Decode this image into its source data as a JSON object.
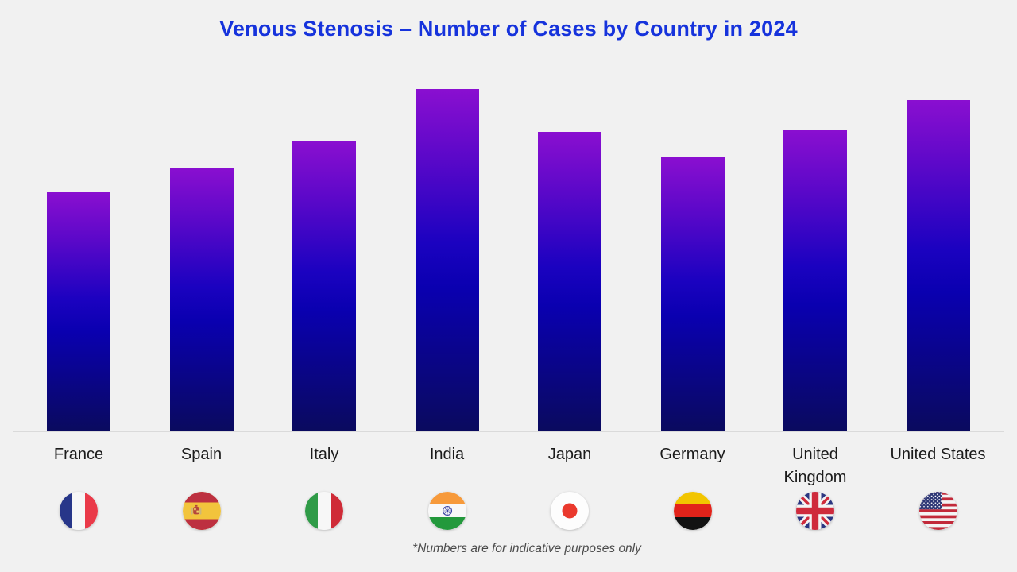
{
  "title": {
    "text": "Venous Stenosis – Number of Cases by Country in 2024"
  },
  "footnote": {
    "text": "*Numbers are for indicative purposes only"
  },
  "chart_data": {
    "type": "bar",
    "title": "Venous Stenosis – Number of Cases by Country in 2024",
    "categories": [
      "France",
      "Spain",
      "Italy",
      "India",
      "Japan",
      "Germany",
      "United Kingdom",
      "United States"
    ],
    "values": [
      301,
      332,
      365,
      431,
      377,
      345,
      379,
      417
    ],
    "value_scale_note": "no y-axis shown; values are relative bar heights (px), numbers indicative only",
    "xlabel": "",
    "ylabel": "",
    "grid": false,
    "legend": null,
    "note": "*Numbers are for indicative purposes only",
    "flag_icons": [
      "france-flag-icon",
      "spain-flag-icon",
      "italy-flag-icon",
      "india-flag-icon",
      "japan-flag-icon",
      "germany-flag-icon",
      "united-kingdom-flag-icon",
      "united-states-flag-icon"
    ],
    "colors": {
      "background": "#f1f1f1",
      "title": "#1633dc",
      "bar_gradient_top": "#8a0fd0",
      "bar_gradient_mid": "#1b02c0",
      "bar_gradient_bottom": "#0a0a5e",
      "baseline": "#dadada",
      "label": "#1b1b1b",
      "footnote": "#4b4b4b"
    }
  }
}
